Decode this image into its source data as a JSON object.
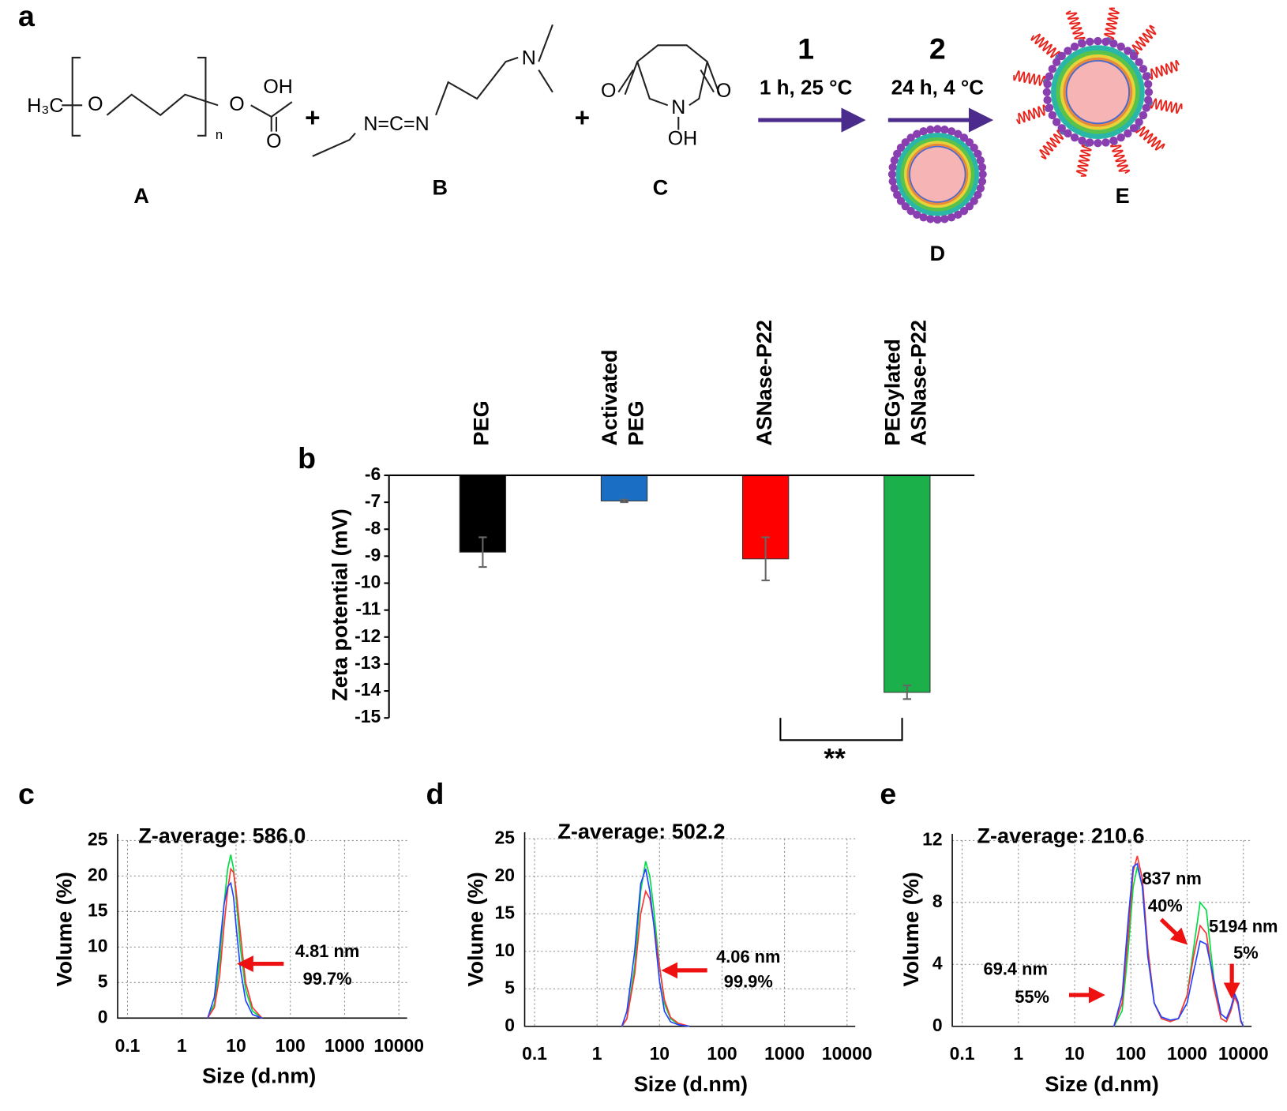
{
  "panel_a": {
    "letter": "a",
    "molecule_a": {
      "atoms": [
        "H₃C",
        "O",
        "O",
        "OH",
        "O",
        "n"
      ],
      "label": "A"
    },
    "plus_1": "+",
    "molecule_b": {
      "atoms": [
        "N=C=N",
        "N"
      ],
      "label": "B"
    },
    "plus_2": "+",
    "molecule_c": {
      "atoms": [
        "O",
        "N",
        "O",
        "OH"
      ],
      "label": "C"
    },
    "step_1": {
      "number": "1",
      "condition": "1 h, 25 °C"
    },
    "step_2": {
      "number": "2",
      "condition": "24 h, 4 °C"
    },
    "label_d": "D",
    "label_e": "E"
  },
  "chart_data": [
    {
      "type": "bar",
      "letter": "b",
      "y_label": "Zeta potential (mV)",
      "categories": [
        [
          "PEG"
        ],
        [
          "Activated",
          "PEG"
        ],
        [
          "ASNase-P22"
        ],
        [
          "PEGylated",
          "ASNase-P22"
        ]
      ],
      "values": [
        -8.85,
        -6.95,
        -9.1,
        -14.05
      ],
      "errors": [
        0.55,
        0.05,
        0.8,
        0.25
      ],
      "colors": [
        "#000000",
        "#1a6fc4",
        "#ff0000",
        "#1bb04a"
      ],
      "ylim": [
        -15,
        -6
      ],
      "yticks": [
        -6,
        -7,
        -8,
        -9,
        -10,
        -11,
        -12,
        -13,
        -14,
        -15
      ],
      "annotations": [
        "**"
      ]
    },
    {
      "type": "line",
      "letter": "c",
      "title": "Z-average: 586.0",
      "x_label": "Size (d.nm)",
      "y_label": "Volume (%)",
      "xscale": "log",
      "grid": true,
      "x": [
        3,
        4,
        5,
        6,
        7,
        8,
        9,
        10,
        12,
        15,
        20,
        30
      ],
      "series": [
        {
          "color": "#00dd44",
          "values": [
            0,
            2,
            8,
            16,
            21,
            23,
            21,
            17,
            10,
            4,
            1,
            0
          ]
        },
        {
          "color": "#ff3333",
          "values": [
            0,
            1.5,
            6,
            13,
            18,
            21,
            20.5,
            18,
            12,
            5,
            1.5,
            0
          ]
        },
        {
          "color": "#2244ff",
          "values": [
            0,
            3,
            10,
            16,
            18.5,
            19,
            17,
            13,
            7,
            2.5,
            0.5,
            0
          ]
        }
      ],
      "xlim": [
        0.1,
        10000
      ],
      "xticks": [
        0.1,
        1,
        10,
        100,
        1000,
        10000
      ],
      "ylim": [
        0,
        25
      ],
      "yticks": [
        0,
        5,
        10,
        15,
        20,
        25
      ],
      "annotations": [
        "4.81 nm",
        "99.7%"
      ]
    },
    {
      "type": "line",
      "letter": "d",
      "title": "Z-average: 502.2",
      "x_label": "Size (d.nm)",
      "y_label": "Volume (%)",
      "xscale": "log",
      "grid": true,
      "x": [
        2.5,
        3,
        4,
        5,
        6,
        7,
        8,
        10,
        12,
        15,
        20,
        30
      ],
      "series": [
        {
          "color": "#00dd44",
          "values": [
            0,
            1,
            8,
            18,
            22,
            20,
            16,
            8,
            3,
            1,
            0.3,
            0
          ]
        },
        {
          "color": "#ff3333",
          "values": [
            0,
            1,
            7,
            15,
            18,
            17,
            14,
            8,
            3.5,
            1.2,
            0.4,
            0
          ]
        },
        {
          "color": "#2244ff",
          "values": [
            0,
            2,
            10,
            19,
            21,
            18,
            14,
            6,
            2,
            0.6,
            0.2,
            0
          ]
        }
      ],
      "xlim": [
        0.1,
        10000
      ],
      "xticks": [
        0.1,
        1,
        10,
        100,
        1000,
        10000
      ],
      "ylim": [
        0,
        25
      ],
      "yticks": [
        0,
        5,
        10,
        15,
        20,
        25
      ],
      "annotations": [
        "4.06 nm",
        "99.9%"
      ]
    },
    {
      "type": "line",
      "letter": "e",
      "title": "Z-average: 210.6",
      "x_label": "Size (d.nm)",
      "y_label": "Volume (%)",
      "xscale": "log",
      "grid": true,
      "x": [
        50,
        70,
        90,
        110,
        130,
        160,
        200,
        260,
        350,
        500,
        700,
        1000,
        1300,
        1700,
        2200,
        3000,
        4000,
        5000,
        6000,
        7000,
        8000,
        9000,
        10000
      ],
      "series": [
        {
          "color": "#00dd44",
          "values": [
            0,
            1,
            5,
            9,
            10.3,
            9,
            5,
            1.5,
            0.5,
            0.3,
            0.5,
            2,
            5,
            8,
            7.5,
            3,
            0.5,
            0.3,
            1,
            2,
            1.5,
            0.3,
            0
          ]
        },
        {
          "color": "#ff3333",
          "values": [
            0,
            1.5,
            6,
            10,
            11,
            9.5,
            5,
            1.5,
            0.5,
            0.3,
            0.5,
            2,
            4.5,
            6.5,
            6,
            2.5,
            0.5,
            0.3,
            1,
            1.9,
            1.4,
            0.3,
            0
          ]
        },
        {
          "color": "#2244ff",
          "values": [
            0,
            2,
            7,
            10.3,
            10.5,
            9,
            4.5,
            1.5,
            0.6,
            0.4,
            0.5,
            1.5,
            3.5,
            5.5,
            5.3,
            3,
            0.8,
            0.5,
            1.2,
            2.1,
            1.6,
            0.4,
            0
          ]
        }
      ],
      "xlim": [
        0.1,
        10000
      ],
      "xticks": [
        0.1,
        1,
        10,
        100,
        1000,
        10000
      ],
      "ylim": [
        0,
        12
      ],
      "yticks": [
        0,
        4,
        8,
        12
      ],
      "annotations": [
        "69.4 nm",
        "55%",
        "837 nm",
        "40%",
        "5194 nm",
        "5%"
      ]
    }
  ]
}
